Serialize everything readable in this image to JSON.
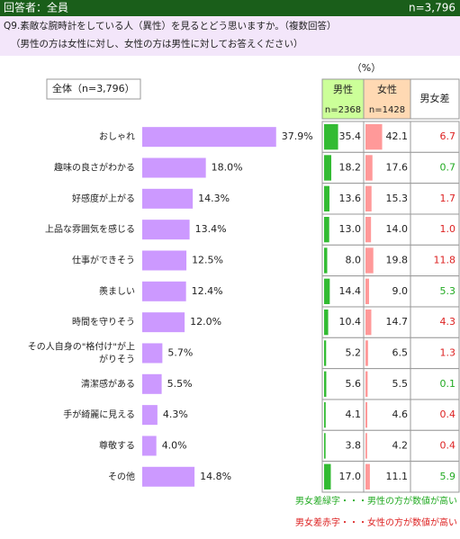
{
  "header": {
    "respondents": "回答者：全員",
    "n": "n=3,796"
  },
  "question": [
    "Q9.素敵な腕時計をしている人（異性）を見るとどう思いますか。（複数回答）",
    "（男性の方は女性に対し、女性の方は男性に対してお答えください）"
  ],
  "chart_data": {
    "type": "bar",
    "label": "全体（n=3,796）",
    "categories": [
      "おしゃれ",
      "趣味の良さがわかる",
      "好感度が上がる",
      "上品な雰囲気を感じる",
      "仕事ができそう",
      "羨ましい",
      "時間を守りそう",
      "その人自身の\"格付け\"が上がりそう",
      "清潔感がある",
      "手が綺麗に見える",
      "尊敬する",
      "その他"
    ],
    "values": [
      37.9,
      18.0,
      14.3,
      13.4,
      12.5,
      12.4,
      12.0,
      5.7,
      5.5,
      4.3,
      4.0,
      14.8
    ],
    "value_labels": [
      "37.9%",
      "18.0%",
      "14.3%",
      "13.4%",
      "12.5%",
      "12.4%",
      "12.0%",
      "5.7%",
      "5.5%",
      "4.3%",
      "4.0%",
      "14.8%"
    ],
    "color": "#cc99ff",
    "xlim": [
      0,
      40
    ]
  },
  "table": {
    "unit": "（%）",
    "xlim": [
      0,
      100
    ],
    "columns": [
      {
        "name": "男性",
        "n": "n=2368",
        "color": "#33bb33",
        "header_color": "#ccff99",
        "values": [
          35.4,
          18.2,
          13.6,
          13.0,
          8.0,
          14.4,
          10.4,
          5.2,
          5.6,
          4.1,
          3.8,
          17.0
        ],
        "value_labels": [
          "35.4",
          "18.2",
          "13.6",
          "13.0",
          "8.0",
          "14.4",
          "10.4",
          "5.2",
          "5.6",
          "4.1",
          "3.8",
          "17.0"
        ]
      },
      {
        "name": "女性",
        "n": "n=1428",
        "color": "#ff9999",
        "header_color": "#ffd9b3",
        "values": [
          42.1,
          17.6,
          15.3,
          14.0,
          19.8,
          9.0,
          14.7,
          6.5,
          5.5,
          4.6,
          4.2,
          11.1
        ],
        "value_labels": [
          "42.1",
          "17.6",
          "15.3",
          "14.0",
          "19.8",
          "9.0",
          "14.7",
          "6.5",
          "5.5",
          "4.6",
          "4.2",
          "11.1"
        ]
      }
    ],
    "diff": {
      "name": "男女差",
      "values": [
        6.7,
        0.7,
        1.7,
        1.0,
        11.8,
        5.3,
        4.3,
        1.3,
        0.1,
        0.4,
        0.4,
        5.9
      ],
      "value_labels": [
        "6.7",
        "0.7",
        "1.7",
        "1.0",
        "11.8",
        "5.3",
        "4.3",
        "1.3",
        "0.1",
        "0.4",
        "0.4",
        "5.9"
      ]
    }
  },
  "notes": [
    {
      "text": "男女差緑字・・・男性の方が数値が高い",
      "color": "#22aa22"
    },
    {
      "text": "男女差赤字・・・女性の方が数値が高い",
      "color": "#dd2222"
    }
  ]
}
